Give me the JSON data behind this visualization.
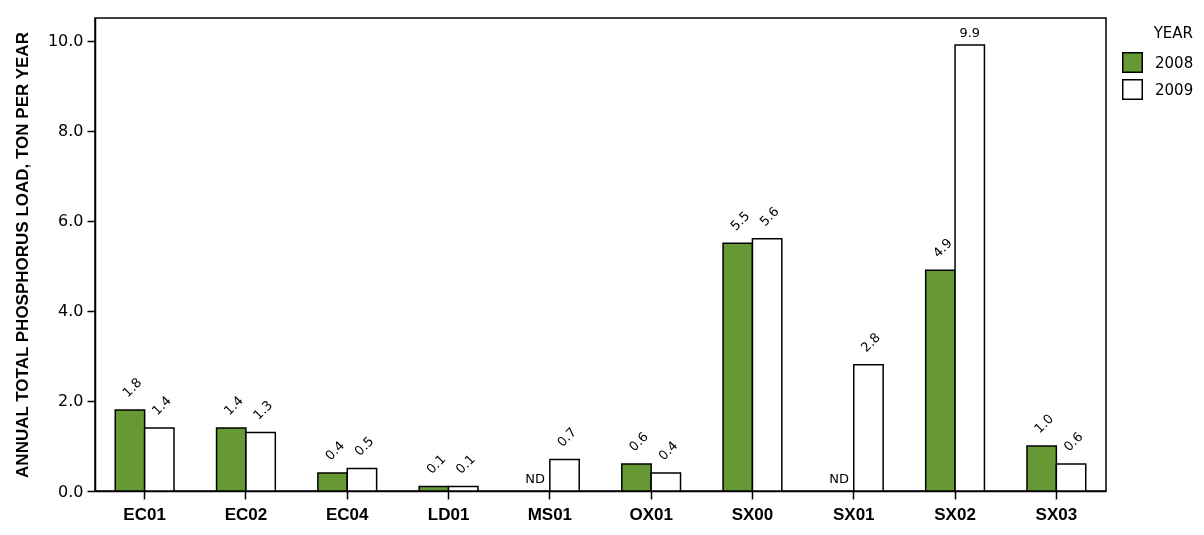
{
  "chart_data": {
    "type": "bar",
    "ylabel": "ANNUAL TOTAL PHOSPHORUS LOAD, TON PER YEAR",
    "legend_title": "YEAR",
    "legend": "right",
    "categories": [
      "EC01",
      "EC02",
      "EC04",
      "LD01",
      "MS01",
      "OX01",
      "SX00",
      "SX01",
      "SX02",
      "SX03"
    ],
    "series": [
      {
        "name": "2008",
        "color": "#669933",
        "values": [
          1.8,
          1.4,
          0.4,
          0.1,
          null,
          0.6,
          5.5,
          null,
          4.9,
          1.0
        ],
        "value_labels": [
          "1.8",
          "1.4",
          "0.4",
          "0.1",
          "ND",
          "0.6",
          "5.5",
          "ND",
          "4.9",
          "1.0"
        ]
      },
      {
        "name": "2009",
        "color": "#ffffff",
        "values": [
          1.4,
          1.3,
          0.5,
          0.1,
          0.7,
          0.4,
          5.6,
          2.8,
          9.9,
          0.6
        ],
        "value_labels": [
          "1.4",
          "1.3",
          "0.5",
          "0.1",
          "0.7",
          "0.4",
          "5.6",
          "2.8",
          "9.9",
          "0.6"
        ]
      }
    ],
    "ylim": [
      0,
      10.5
    ],
    "yticks": [
      {
        "value": 0,
        "label": "0.0"
      },
      {
        "value": 2,
        "label": "2.0"
      },
      {
        "value": 4,
        "label": "4.0"
      },
      {
        "value": 6,
        "label": "6.0"
      },
      {
        "value": 8,
        "label": "8.0"
      },
      {
        "value": 10,
        "label": "10.0"
      }
    ]
  }
}
